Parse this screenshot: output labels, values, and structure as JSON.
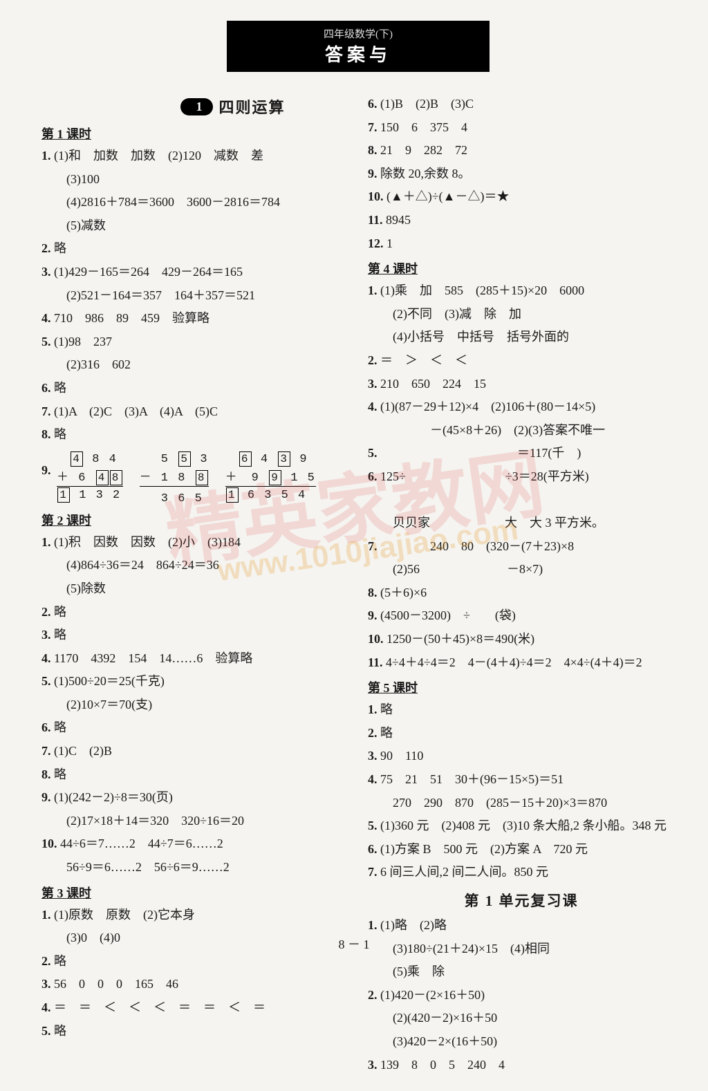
{
  "header": {
    "sub": "四年级数学(下)",
    "main": "答案与"
  },
  "unit": {
    "pill": "1",
    "title": "四则运算"
  },
  "review_title": "第 1 单元复习课",
  "footer": "8 － 1",
  "watermark_main": "精英家教网",
  "watermark_url": "www.1010jiajiao.com",
  "left": {
    "l1_title": "第 1 课时",
    "l1": [
      "1. (1)和　加数　加数　(2)120　减数　差",
      "　　(3)100",
      "　　(4)2816＋784＝3600　3600－2816＝784",
      "　　(5)减数",
      "2. 略",
      "3. (1)429－165＝264　429－264＝165",
      "　　(2)521－164＝357　164＋357＝521",
      "4. 710　986　89　459　验算略",
      "5. (1)98　237",
      "　　(2)316　602",
      "6. 略",
      "7. (1)A　(2)C　(3)A　(4)A　(5)C",
      "8. 略"
    ],
    "p9": {
      "label": "9.",
      "c1": {
        "r1": "　[4] 8 4",
        "r2": "＋ 6 [4][8]",
        "r3": "[1] 1 3 2"
      },
      "c2": {
        "r1": "　 5 [5] 3",
        "r2": "－ 1 8 [8]",
        "r3": "　 3 6 5"
      },
      "c3": {
        "r1": "　[6] 4 [3] 9",
        "r2": "＋　9 [9] 1 5",
        "r3": "[1] 6 3 5 4"
      }
    },
    "l2_title": "第 2 课时",
    "l2": [
      "1. (1)积　因数　因数　(2)小　(3)184",
      "　　(4)864÷36＝24　864÷24＝36",
      "　　(5)除数",
      "2. 略",
      "3. 略",
      "4. 1170　4392　154　14……6　验算略",
      "5. (1)500÷20＝25(千克)",
      "　　(2)10×7＝70(支)",
      "6. 略",
      "7. (1)C　(2)B",
      "8. 略",
      "9. (1)(242－2)÷8＝30(页)",
      "　　(2)17×18＋14＝320　320÷16＝20",
      "10. 44÷6＝7……2　44÷7＝6……2",
      "　　56÷9＝6……2　56÷6＝9……2"
    ],
    "l3_title": "第 3 课时",
    "l3": [
      "1. (1)原数　原数　(2)它本身",
      "　　(3)0　(4)0",
      "2. 略",
      "3. 56　0　0　0　165　46",
      "4. ＝　＝　＜　＜　＜　＝　＝　＜　＝",
      "5. 略"
    ]
  },
  "right": {
    "top": [
      "6. (1)B　(2)B　(3)C",
      "7. 150　6　375　4",
      "8. 21　9　282　72",
      "9. 除数 20,余数 8。",
      "10. (▲＋△)÷(▲－△)＝★",
      "11. 8945",
      "12. 1"
    ],
    "l4_title": "第 4 课时",
    "l4": [
      "1. (1)乘　加　585　(285＋15)×20　6000",
      "　　(2)不同　(3)减　除　加",
      "　　(4)小括号　中括号　括号外面的",
      "2. ＝　＞　＜　＜",
      "3. 210　650　224　15",
      "4. (1)(87－29＋12)×4　(2)106＋(80－14×5)",
      "　　　　　－(45×8＋26)　(2)(3)答案不唯一",
      "5. 　　　　　　　　　　　＝117(千　)",
      "6. 125÷　　　　　　　　÷3＝28(平方米)",
      "　　　　　　　　　　　",
      "　　贝贝家　　　　　　大　大 3 平方米。",
      "7. 　　　　240　80　(320－(7＋23)×8",
      "　　(2)56　　　　　　　－8×7)",
      "8. (5＋6)×6　",
      "9. (4500－3200)　÷　　(袋)",
      "10. 1250－(50＋45)×8＝490(米)",
      "11. 4÷4＋4÷4＝2　4－(4＋4)÷4＝2　4×4÷(4＋4)＝2"
    ],
    "l5_title": "第 5 课时",
    "l5": [
      "1. 略",
      "2. 略",
      "3. 90　110",
      "4. 75　21　51　30＋(96－15×5)＝51",
      "　　270　290　870　(285－15＋20)×3＝870",
      "5. (1)360 元　(2)408 元　(3)10 条大船,2 条小船。348 元",
      "6. (1)方案 B　500 元　(2)方案 A　720 元",
      "7. 6 间三人间,2 间二人间。850 元"
    ],
    "review": [
      "1. (1)略　(2)略",
      "　　(3)180÷(21＋24)×15　(4)相同",
      "　　(5)乘　除",
      "2. (1)420－(2×16＋50)",
      "　　(2)(420－2)×16＋50",
      "　　(3)420－2×(16＋50)",
      "3. 139　8　0　5　240　4"
    ]
  }
}
